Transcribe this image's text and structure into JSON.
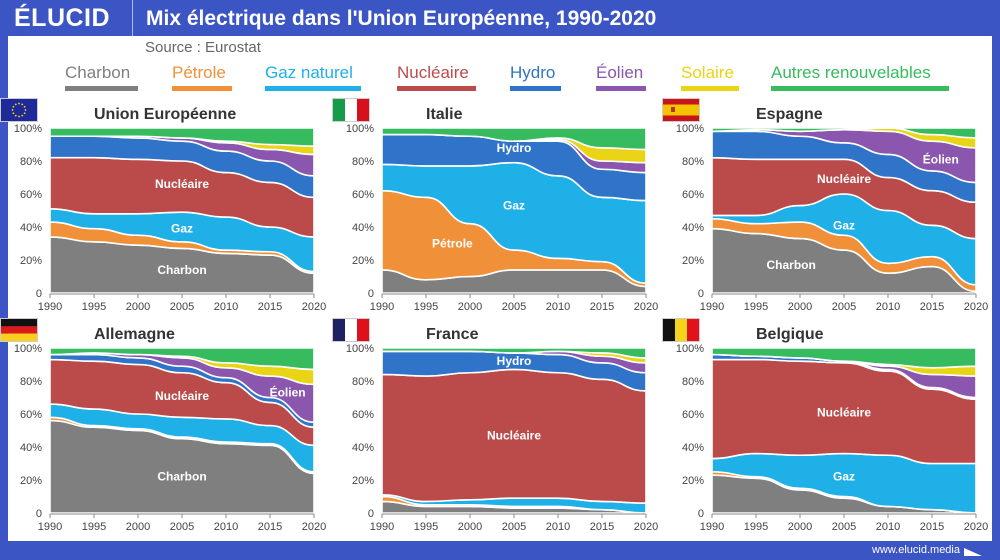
{
  "header": {
    "logo": "ÉLUCID",
    "title": "Mix électrique dans l'Union Européenne, 1990-2020",
    "source": "Source : Eurostat"
  },
  "footer": {
    "url": "www.elucid.media"
  },
  "legend": [
    {
      "key": "charbon",
      "label": "Charbon",
      "color": "#7f7f7f"
    },
    {
      "key": "petrole",
      "label": "Pétrole",
      "color": "#f0913a"
    },
    {
      "key": "gaz",
      "label": "Gaz naturel",
      "color": "#1fb0e8"
    },
    {
      "key": "nucleaire",
      "label": "Nucléaire",
      "color": "#bb4b4b"
    },
    {
      "key": "hydro",
      "label": "Hydro",
      "color": "#2f74c8"
    },
    {
      "key": "eolien",
      "label": "Éolien",
      "color": "#8a56ae"
    },
    {
      "key": "solaire",
      "label": "Solaire",
      "color": "#e9d416"
    },
    {
      "key": "autres",
      "label": "Autres renouvelables",
      "color": "#36bb5f"
    }
  ],
  "chart_data": [
    {
      "type": "area",
      "title": "Union Européenne",
      "flag": "eu",
      "x": [
        1990,
        1995,
        2000,
        2005,
        2010,
        2015,
        2020
      ],
      "yticks": [
        "0",
        "20%",
        "40%",
        "60%",
        "80%",
        "100%"
      ],
      "ylim": [
        0,
        100
      ],
      "series": [
        {
          "name": "Charbon",
          "values": [
            34,
            31,
            29,
            27,
            24,
            23,
            12
          ]
        },
        {
          "name": "Pétrole",
          "values": [
            9,
            8,
            6,
            4,
            2,
            2,
            1
          ]
        },
        {
          "name": "Gaz naturel",
          "values": [
            8,
            9,
            13,
            18,
            20,
            15,
            21
          ]
        },
        {
          "name": "Nucléaire",
          "values": [
            31,
            34,
            33,
            31,
            27,
            27,
            24
          ]
        },
        {
          "name": "Hydro",
          "values": [
            13,
            13,
            13,
            12,
            13,
            13,
            13
          ]
        },
        {
          "name": "Éolien",
          "values": [
            0,
            0,
            1,
            2,
            5,
            7,
            13
          ]
        },
        {
          "name": "Solaire",
          "values": [
            0,
            0,
            0,
            0,
            1,
            3,
            5
          ]
        },
        {
          "name": "Autres renouvelables",
          "values": [
            5,
            5,
            5,
            6,
            8,
            10,
            11
          ]
        }
      ],
      "annotations": [
        {
          "text": "Nucléaire",
          "x": 2005,
          "y": 66
        },
        {
          "text": "Gaz",
          "x": 2005,
          "y": 39
        },
        {
          "text": "Charbon",
          "x": 2005,
          "y": 14
        }
      ]
    },
    {
      "type": "area",
      "title": "Italie",
      "flag": "it",
      "x": [
        1990,
        1995,
        2000,
        2005,
        2010,
        2015,
        2020
      ],
      "yticks": [
        "0",
        "20%",
        "40%",
        "60%",
        "80%",
        "100%"
      ],
      "ylim": [
        0,
        100
      ],
      "series": [
        {
          "name": "Charbon",
          "values": [
            14,
            8,
            10,
            14,
            14,
            14,
            4
          ]
        },
        {
          "name": "Pétrole",
          "values": [
            48,
            50,
            32,
            12,
            7,
            5,
            2
          ]
        },
        {
          "name": "Gaz naturel",
          "values": [
            16,
            19,
            35,
            53,
            50,
            39,
            50
          ]
        },
        {
          "name": "Nucléaire",
          "values": [
            0,
            0,
            0,
            0,
            0,
            0,
            0
          ]
        },
        {
          "name": "Hydro",
          "values": [
            18,
            19,
            18,
            13,
            21,
            17,
            17
          ]
        },
        {
          "name": "Éolien",
          "values": [
            0,
            0,
            0,
            0,
            1,
            5,
            6
          ]
        },
        {
          "name": "Solaire",
          "values": [
            0,
            0,
            0,
            0,
            1,
            8,
            8
          ]
        },
        {
          "name": "Autres renouvelables",
          "values": [
            4,
            4,
            5,
            8,
            6,
            12,
            13
          ]
        }
      ],
      "annotations": [
        {
          "text": "Hydro",
          "x": 2005,
          "y": 88
        },
        {
          "text": "Gaz",
          "x": 2005,
          "y": 53
        },
        {
          "text": "Pétrole",
          "x": 1998,
          "y": 30
        }
      ]
    },
    {
      "type": "area",
      "title": "Espagne",
      "flag": "es",
      "x": [
        1990,
        1995,
        2000,
        2005,
        2010,
        2015,
        2020
      ],
      "yticks": [
        "0",
        "20%",
        "40%",
        "60%",
        "80%",
        "100%"
      ],
      "ylim": [
        0,
        100
      ],
      "series": [
        {
          "name": "Charbon",
          "values": [
            39,
            36,
            33,
            26,
            12,
            16,
            1
          ]
        },
        {
          "name": "Pétrole",
          "values": [
            6,
            6,
            10,
            9,
            6,
            6,
            4
          ]
        },
        {
          "name": "Gaz naturel",
          "values": [
            2,
            5,
            10,
            25,
            32,
            19,
            28
          ]
        },
        {
          "name": "Nucléaire",
          "values": [
            35,
            34,
            28,
            21,
            20,
            21,
            22
          ]
        },
        {
          "name": "Hydro",
          "values": [
            16,
            17,
            14,
            10,
            14,
            12,
            12
          ]
        },
        {
          "name": "Éolien",
          "values": [
            0,
            1,
            3,
            8,
            14,
            18,
            21
          ]
        },
        {
          "name": "Solaire",
          "values": [
            0,
            0,
            0,
            0,
            2,
            4,
            6
          ]
        },
        {
          "name": "Autres renouvelables",
          "values": [
            2,
            1,
            2,
            1,
            0,
            4,
            6
          ]
        }
      ],
      "annotations": [
        {
          "text": "Éolien",
          "x": 2016,
          "y": 81
        },
        {
          "text": "Nucléaire",
          "x": 2005,
          "y": 69
        },
        {
          "text": "Gaz",
          "x": 2005,
          "y": 41
        },
        {
          "text": "Charbon",
          "x": 1999,
          "y": 17
        }
      ]
    },
    {
      "type": "area",
      "title": "Allemagne",
      "flag": "de",
      "x": [
        1990,
        1995,
        2000,
        2005,
        2010,
        2015,
        2020
      ],
      "yticks": [
        "0",
        "20%",
        "40%",
        "60%",
        "80%",
        "100%"
      ],
      "ylim": [
        0,
        100
      ],
      "series": [
        {
          "name": "Charbon",
          "values": [
            56,
            52,
            50,
            45,
            42,
            41,
            24
          ]
        },
        {
          "name": "Pétrole",
          "values": [
            2,
            1,
            1,
            1,
            1,
            1,
            1
          ]
        },
        {
          "name": "Gaz naturel",
          "values": [
            8,
            10,
            9,
            12,
            14,
            11,
            16
          ]
        },
        {
          "name": "Nucléaire",
          "values": [
            27,
            29,
            30,
            27,
            22,
            14,
            11
          ]
        },
        {
          "name": "Hydro",
          "values": [
            3,
            4,
            4,
            4,
            3,
            3,
            3
          ]
        },
        {
          "name": "Éolien",
          "values": [
            0,
            1,
            2,
            5,
            6,
            13,
            23
          ]
        },
        {
          "name": "Solaire",
          "values": [
            0,
            0,
            0,
            1,
            3,
            6,
            9
          ]
        },
        {
          "name": "Autres renouvelables",
          "values": [
            4,
            3,
            4,
            5,
            9,
            11,
            13
          ]
        }
      ],
      "annotations": [
        {
          "text": "Nucléaire",
          "x": 2005,
          "y": 71
        },
        {
          "text": "Éolien",
          "x": 2017,
          "y": 73
        },
        {
          "text": "Charbon",
          "x": 2005,
          "y": 22
        }
      ]
    },
    {
      "type": "area",
      "title": "France",
      "flag": "fr",
      "x": [
        1990,
        1995,
        2000,
        2005,
        2010,
        2015,
        2020
      ],
      "yticks": [
        "0",
        "20%",
        "40%",
        "60%",
        "80%",
        "100%"
      ],
      "ylim": [
        0,
        100
      ],
      "series": [
        {
          "name": "Charbon",
          "values": [
            7,
            4,
            4,
            3,
            3,
            2,
            0
          ]
        },
        {
          "name": "Pétrole",
          "values": [
            3,
            1,
            1,
            1,
            1,
            0,
            0
          ]
        },
        {
          "name": "Gaz naturel",
          "values": [
            1,
            2,
            3,
            5,
            5,
            5,
            6
          ]
        },
        {
          "name": "Nucléaire",
          "values": [
            73,
            76,
            77,
            78,
            76,
            74,
            68
          ]
        },
        {
          "name": "Hydro",
          "values": [
            14,
            15,
            13,
            10,
            11,
            10,
            11
          ]
        },
        {
          "name": "Éolien",
          "values": [
            0,
            0,
            0,
            0,
            2,
            4,
            6
          ]
        },
        {
          "name": "Solaire",
          "values": [
            0,
            0,
            0,
            0,
            0,
            2,
            3
          ]
        },
        {
          "name": "Autres renouvelables",
          "values": [
            2,
            2,
            2,
            3,
            2,
            3,
            6
          ]
        }
      ],
      "annotations": [
        {
          "text": "Hydro",
          "x": 2005,
          "y": 92
        },
        {
          "text": "Nucléaire",
          "x": 2005,
          "y": 47
        }
      ]
    },
    {
      "type": "area",
      "title": "Belgique",
      "flag": "be",
      "x": [
        1990,
        1995,
        2000,
        2005,
        2010,
        2015,
        2020
      ],
      "yticks": [
        "0",
        "20%",
        "40%",
        "60%",
        "80%",
        "100%"
      ],
      "ylim": [
        0,
        100
      ],
      "series": [
        {
          "name": "Charbon",
          "values": [
            23,
            21,
            14,
            9,
            4,
            2,
            0
          ]
        },
        {
          "name": "Pétrole",
          "values": [
            2,
            1,
            1,
            1,
            0,
            0,
            0
          ]
        },
        {
          "name": "Gaz naturel",
          "values": [
            8,
            14,
            20,
            26,
            31,
            28,
            30
          ]
        },
        {
          "name": "Nucléaire",
          "values": [
            60,
            57,
            57,
            55,
            51,
            45,
            39
          ]
        },
        {
          "name": "Hydro",
          "values": [
            3,
            2,
            2,
            1,
            1,
            1,
            1
          ]
        },
        {
          "name": "Éolien",
          "values": [
            0,
            0,
            0,
            0,
            2,
            8,
            13
          ]
        },
        {
          "name": "Solaire",
          "values": [
            0,
            0,
            0,
            0,
            1,
            4,
            6
          ]
        },
        {
          "name": "Autres renouvelables",
          "values": [
            4,
            5,
            6,
            8,
            10,
            12,
            11
          ]
        }
      ],
      "annotations": [
        {
          "text": "Nucléaire",
          "x": 2005,
          "y": 61
        },
        {
          "text": "Gaz",
          "x": 2005,
          "y": 22
        }
      ]
    }
  ]
}
